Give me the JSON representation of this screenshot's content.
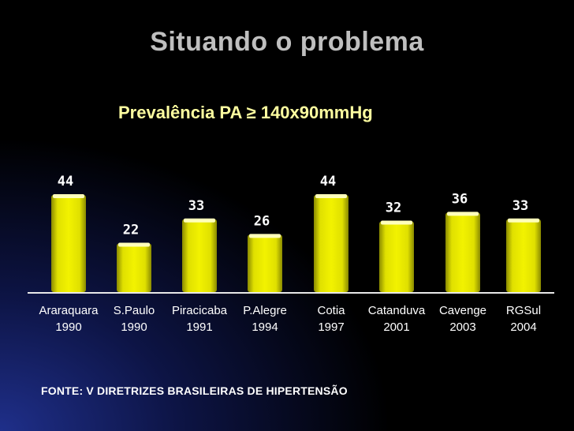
{
  "slide": {
    "title": "Situando o problema",
    "subtitle": "Prevalência PA ≥ 140x90mmHg",
    "source": "FONTE:  V DIRETRIZES BRASILEIRAS DE HIPERTENSÃO"
  },
  "colors": {
    "background": "#000000",
    "bar_fill": "#e0e000",
    "bar_cap": "#ffffbb",
    "value_label": "#ffffff",
    "axis_label": "#ffffff",
    "title": "#bfbfbf",
    "subtitle": "#ffffa0"
  },
  "chart_data": {
    "type": "bar",
    "title": "Prevalência PA ≥ 140x90mmHg",
    "categories": [
      {
        "city": "Araraquara",
        "year": "1990"
      },
      {
        "city": "S.Paulo",
        "year": "1990"
      },
      {
        "city": "Piracicaba",
        "year": "1991"
      },
      {
        "city": "P.Alegre",
        "year": "1994"
      },
      {
        "city": "Cotia",
        "year": "1997"
      },
      {
        "city": "Catanduva",
        "year": "2001"
      },
      {
        "city": "Cavenge",
        "year": "2003"
      },
      {
        "city": "RGSul",
        "year": "2004"
      }
    ],
    "values": [
      44,
      22,
      33,
      26,
      44,
      32,
      36,
      33
    ],
    "xlabel": "",
    "ylabel": "",
    "ylim": [
      0,
      44
    ],
    "grid": false,
    "legend": "none"
  }
}
